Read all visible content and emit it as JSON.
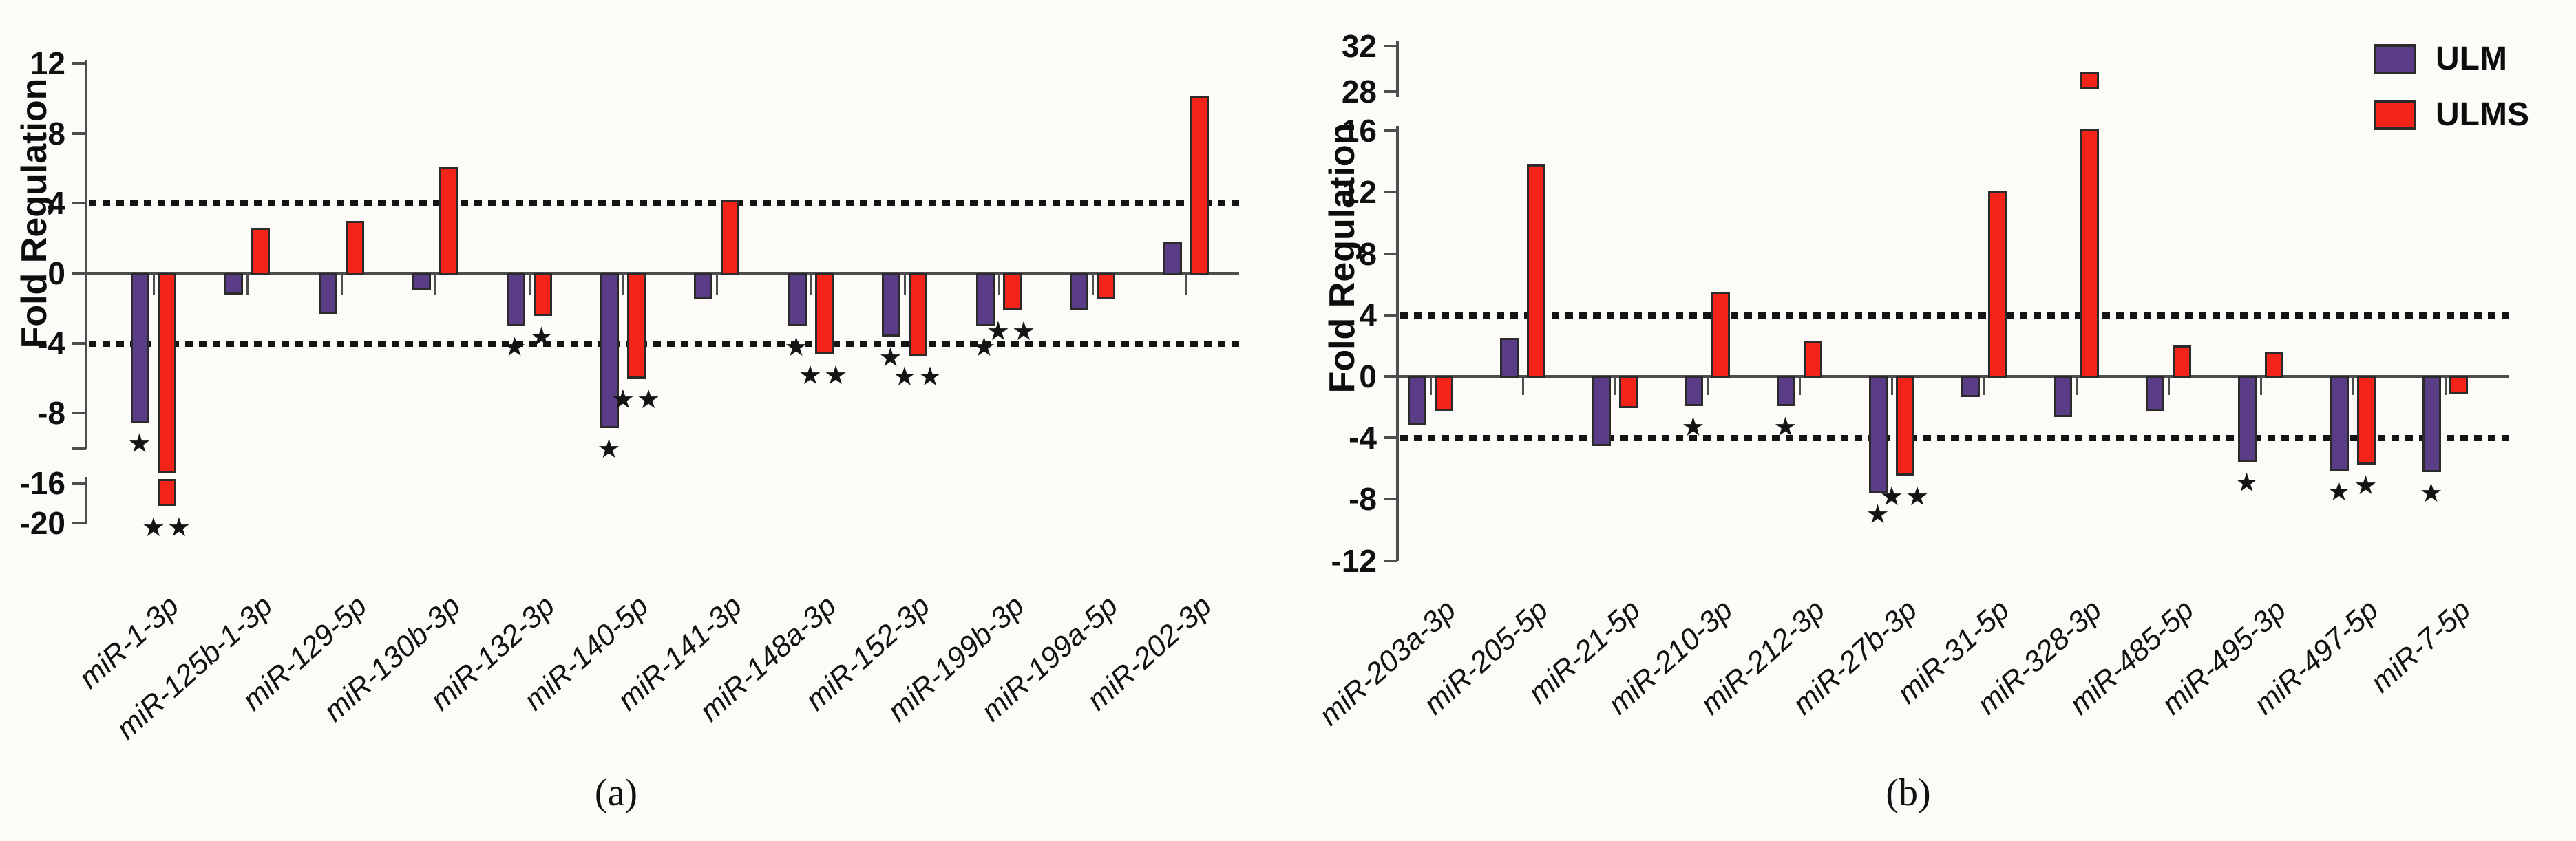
{
  "figure": {
    "ylabel": "Fold Regulation",
    "captions": {
      "a": "(a)",
      "b": "(b)"
    },
    "legend": [
      {
        "label": "ULM",
        "color": "#5a3c87"
      },
      {
        "label": "ULMS",
        "color": "#f52418"
      }
    ],
    "colors": {
      "ulm": "#5a3c87",
      "ulms": "#f52418",
      "axis": "#4d4d4d",
      "dash": "#141414",
      "background": "#fcfbf8"
    }
  },
  "chart_data": [
    {
      "id": "a",
      "type": "bar",
      "ylabel": "Fold Regulation",
      "caption": "(a)",
      "legend_entries": [
        "ULM",
        "ULMS"
      ],
      "categories": [
        "miR-1-3p",
        "miR-125b-1-3p",
        "miR-129-5p",
        "miR-130b-3p",
        "miR-132-3p",
        "miR-140-5p",
        "miR-141-3p",
        "miR-148a-3p",
        "miR-152-3p",
        "miR-199b-3p",
        "miR-199a-5p",
        "miR-202-3p"
      ],
      "series": [
        {
          "name": "ULM",
          "color": "#5a3c87",
          "values": [
            -8.5,
            -1.2,
            -2.3,
            -0.9,
            -3.0,
            -8.8,
            -1.4,
            -3.0,
            -3.6,
            -3.0,
            -2.1,
            1.8
          ],
          "sig": [
            "*",
            "",
            "",
            "",
            "*",
            "*",
            "",
            "*",
            "*",
            "*",
            "",
            ""
          ]
        },
        {
          "name": "ULMS",
          "color": "#f52418",
          "values": [
            -18.3,
            2.6,
            3.0,
            6.1,
            -2.4,
            -6.0,
            4.2,
            -4.6,
            -4.7,
            -2.1,
            -1.4,
            10.1
          ],
          "sig": [
            "**",
            "",
            "",
            "",
            "*",
            "**",
            "",
            "**",
            "**",
            "**",
            "",
            ""
          ]
        }
      ],
      "dashed_lines": [
        4,
        -4
      ],
      "yticks_main": [
        12,
        8,
        4,
        0,
        -4,
        -8
      ],
      "yticks_break": [
        -16,
        -20
      ],
      "axis_break": {
        "side": "lower",
        "between": [
          -8,
          -16
        ]
      },
      "ylim_main": [
        -10,
        12.2
      ],
      "grid": "off",
      "xlabel": ""
    },
    {
      "id": "b",
      "type": "bar",
      "ylabel": "Fold Regulation",
      "caption": "(b)",
      "legend_entries": [
        "ULM",
        "ULMS"
      ],
      "categories": [
        "miR-203a-3p",
        "miR-205-5p",
        "miR-21-5p",
        "miR-210-3p",
        "miR-212-3p",
        "miR-27b-3p",
        "miR-31-5p",
        "miR-328-3p",
        "miR-485-5p",
        "miR-495-3p",
        "miR-497-5p",
        "miR-7-5p"
      ],
      "series": [
        {
          "name": "ULM",
          "color": "#5a3c87",
          "values": [
            -3.1,
            2.5,
            -4.5,
            -1.9,
            -1.9,
            -7.6,
            -1.3,
            -2.6,
            -2.2,
            -5.5,
            -6.1,
            -6.2
          ],
          "sig": [
            "",
            "",
            "",
            "*",
            "*",
            "*",
            "",
            "",
            "",
            "*",
            "*",
            "*"
          ]
        },
        {
          "name": "ULMS",
          "color": "#f52418",
          "values": [
            -2.2,
            13.8,
            -2.0,
            5.5,
            2.3,
            -6.4,
            12.1,
            29.7,
            2.0,
            1.6,
            -5.7,
            -1.1
          ],
          "sig": [
            "",
            "",
            "",
            "",
            "",
            "**",
            "",
            "",
            "",
            "",
            "*",
            ""
          ]
        }
      ],
      "dashed_lines": [
        4,
        -4
      ],
      "yticks_main": [
        16,
        12,
        8,
        4,
        0,
        -4,
        -8,
        -12
      ],
      "yticks_break": [
        32,
        28
      ],
      "axis_break": {
        "side": "upper",
        "between": [
          28,
          16
        ]
      },
      "ylim_main": [
        -12,
        16.3
      ],
      "grid": "off",
      "xlabel": ""
    }
  ]
}
